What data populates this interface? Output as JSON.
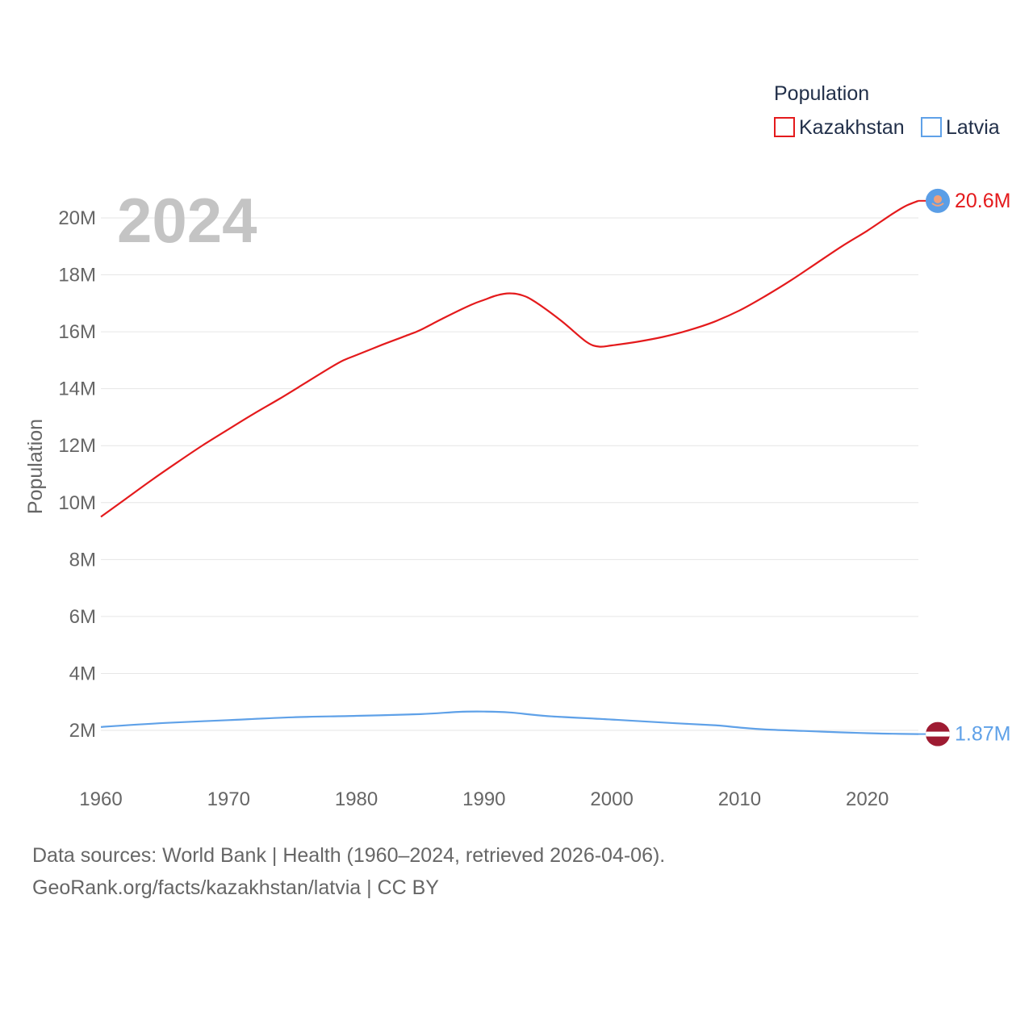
{
  "chart_data": {
    "type": "line",
    "legend_title": "Population",
    "ylabel": "Population",
    "year_label": "2024",
    "xlim": [
      1960,
      2024
    ],
    "ylim": [
      1000000,
      21000000
    ],
    "x_ticks": [
      1960,
      1970,
      1980,
      1990,
      2000,
      2010,
      2020
    ],
    "x_tick_labels": [
      "1960",
      "1970",
      "1980",
      "1990",
      "2000",
      "2010",
      "2020"
    ],
    "y_ticks": [
      2000000,
      4000000,
      6000000,
      8000000,
      10000000,
      12000000,
      14000000,
      16000000,
      18000000,
      20000000
    ],
    "y_tick_labels": [
      "2M",
      "4M",
      "6M",
      "8M",
      "10M",
      "12M",
      "14M",
      "16M",
      "18M",
      "20M"
    ],
    "series": [
      {
        "name": "Kazakhstan",
        "color": "#e41a1c",
        "end_label": "20.6M",
        "marker": "flag-kazakhstan",
        "x": [
          1960,
          1962,
          1964,
          1966,
          1968,
          1970,
          1972,
          1974,
          1976,
          1978,
          1979,
          1980,
          1982,
          1984,
          1985,
          1987,
          1989,
          1990,
          1991,
          1992,
          1993,
          1994,
          1996,
          1998,
          1999,
          2000,
          2002,
          2004,
          2006,
          2008,
          2010,
          2012,
          2014,
          2016,
          2018,
          2020,
          2022,
          2023,
          2024
        ],
        "values": [
          9500000,
          10150000,
          10800000,
          11420000,
          12020000,
          12580000,
          13130000,
          13650000,
          14200000,
          14750000,
          15000000,
          15180000,
          15540000,
          15880000,
          16060000,
          16520000,
          16950000,
          17120000,
          17280000,
          17350000,
          17280000,
          17050000,
          16400000,
          15650000,
          15480000,
          15520000,
          15650000,
          15820000,
          16050000,
          16350000,
          16750000,
          17250000,
          17800000,
          18400000,
          19000000,
          19550000,
          20150000,
          20420000,
          20600000
        ]
      },
      {
        "name": "Latvia",
        "color": "#5fa1e8",
        "end_label": "1.87M",
        "marker": "flag-latvia",
        "x": [
          1960,
          1965,
          1970,
          1975,
          1980,
          1985,
          1988,
          1990,
          1992,
          1995,
          2000,
          2005,
          2008,
          2010,
          2012,
          2015,
          2018,
          2020,
          2022,
          2024
        ],
        "values": [
          2120000,
          2260000,
          2360000,
          2460000,
          2510000,
          2570000,
          2650000,
          2660000,
          2630000,
          2500000,
          2380000,
          2250000,
          2180000,
          2100000,
          2030000,
          1980000,
          1930000,
          1900000,
          1880000,
          1870000
        ]
      }
    ]
  },
  "footer": {
    "line1": "Data sources: World Bank | Health (1960–2024, retrieved 2026-04-06).",
    "line2": "GeoRank.org/facts/kazakhstan/latvia | CC BY"
  }
}
